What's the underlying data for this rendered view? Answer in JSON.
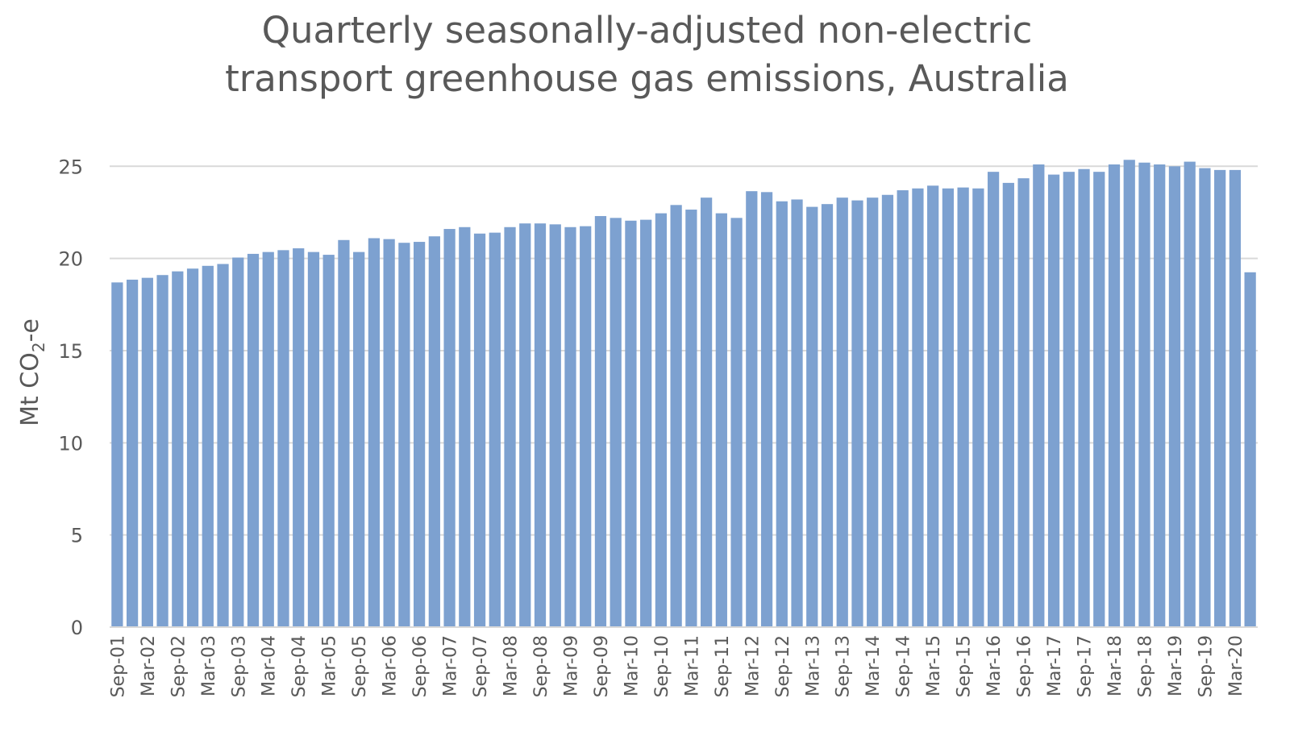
{
  "chart_data": {
    "type": "bar",
    "title_line1": "Quarterly seasonally-adjusted non-electric",
    "title_line2": "transport greenhouse gas emissions, Australia",
    "ylabel_main": "Mt CO",
    "ylabel_sub": "2",
    "ylabel_tail": "-e",
    "ylim": [
      0,
      26.5
    ],
    "yticks": [
      0,
      5,
      10,
      15,
      20,
      25
    ],
    "grid": true,
    "bar_color": "#7da1d0",
    "grid_color": "#d9d9d9",
    "categories": [
      "Sep-01",
      "Dec-01",
      "Mar-02",
      "Jun-02",
      "Sep-02",
      "Dec-02",
      "Mar-03",
      "Jun-03",
      "Sep-03",
      "Dec-03",
      "Mar-04",
      "Jun-04",
      "Sep-04",
      "Dec-04",
      "Mar-05",
      "Jun-05",
      "Sep-05",
      "Dec-05",
      "Mar-06",
      "Jun-06",
      "Sep-06",
      "Dec-06",
      "Mar-07",
      "Jun-07",
      "Sep-07",
      "Dec-07",
      "Mar-08",
      "Jun-08",
      "Sep-08",
      "Dec-08",
      "Mar-09",
      "Jun-09",
      "Sep-09",
      "Dec-09",
      "Mar-10",
      "Jun-10",
      "Sep-10",
      "Dec-10",
      "Mar-11",
      "Jun-11",
      "Sep-11",
      "Dec-11",
      "Mar-12",
      "Jun-12",
      "Sep-12",
      "Dec-12",
      "Mar-13",
      "Jun-13",
      "Sep-13",
      "Dec-13",
      "Mar-14",
      "Jun-14",
      "Sep-14",
      "Dec-14",
      "Mar-15",
      "Jun-15",
      "Sep-15",
      "Dec-15",
      "Mar-16",
      "Jun-16",
      "Sep-16",
      "Dec-16",
      "Mar-17",
      "Jun-17",
      "Sep-17",
      "Dec-17",
      "Mar-18",
      "Jun-18",
      "Sep-18",
      "Dec-18",
      "Mar-19",
      "Jun-19",
      "Sep-19",
      "Dec-19",
      "Mar-20",
      "Jun-20"
    ],
    "tick_labels": [
      "Sep-01",
      "",
      "Mar-02",
      "",
      "Sep-02",
      "",
      "Mar-03",
      "",
      "Sep-03",
      "",
      "Mar-04",
      "",
      "Sep-04",
      "",
      "Mar-05",
      "",
      "Sep-05",
      "",
      "Mar-06",
      "",
      "Sep-06",
      "",
      "Mar-07",
      "",
      "Sep-07",
      "",
      "Mar-08",
      "",
      "Sep-08",
      "",
      "Mar-09",
      "",
      "Sep-09",
      "",
      "Mar-10",
      "",
      "Sep-10",
      "",
      "Mar-11",
      "",
      "Sep-11",
      "",
      "Mar-12",
      "",
      "Sep-12",
      "",
      "Mar-13",
      "",
      "Sep-13",
      "",
      "Mar-14",
      "",
      "Sep-14",
      "",
      "Mar-15",
      "",
      "Sep-15",
      "",
      "Mar-16",
      "",
      "Sep-16",
      "",
      "Mar-17",
      "",
      "Sep-17",
      "",
      "Mar-18",
      "",
      "Sep-18",
      "",
      "Mar-19",
      "",
      "Sep-19",
      "",
      "Mar-20",
      ""
    ],
    "values": [
      18.7,
      18.85,
      18.95,
      19.1,
      19.3,
      19.45,
      19.6,
      19.7,
      20.05,
      20.25,
      20.35,
      20.45,
      20.55,
      20.35,
      20.2,
      21.0,
      20.35,
      21.1,
      21.05,
      20.85,
      20.9,
      21.2,
      21.6,
      21.7,
      21.35,
      21.4,
      21.7,
      21.9,
      21.9,
      21.85,
      21.7,
      21.75,
      22.3,
      22.2,
      22.05,
      22.1,
      22.45,
      22.9,
      22.65,
      23.3,
      22.45,
      22.2,
      23.65,
      23.6,
      23.1,
      23.2,
      22.8,
      22.95,
      23.3,
      23.15,
      23.3,
      23.45,
      23.7,
      23.8,
      23.95,
      23.8,
      23.85,
      23.8,
      24.7,
      24.1,
      24.35,
      25.1,
      24.55,
      24.7,
      24.85,
      24.7,
      25.1,
      25.35,
      25.2,
      25.1,
      25.0,
      25.25,
      24.9,
      24.8,
      24.8,
      19.25
    ]
  }
}
